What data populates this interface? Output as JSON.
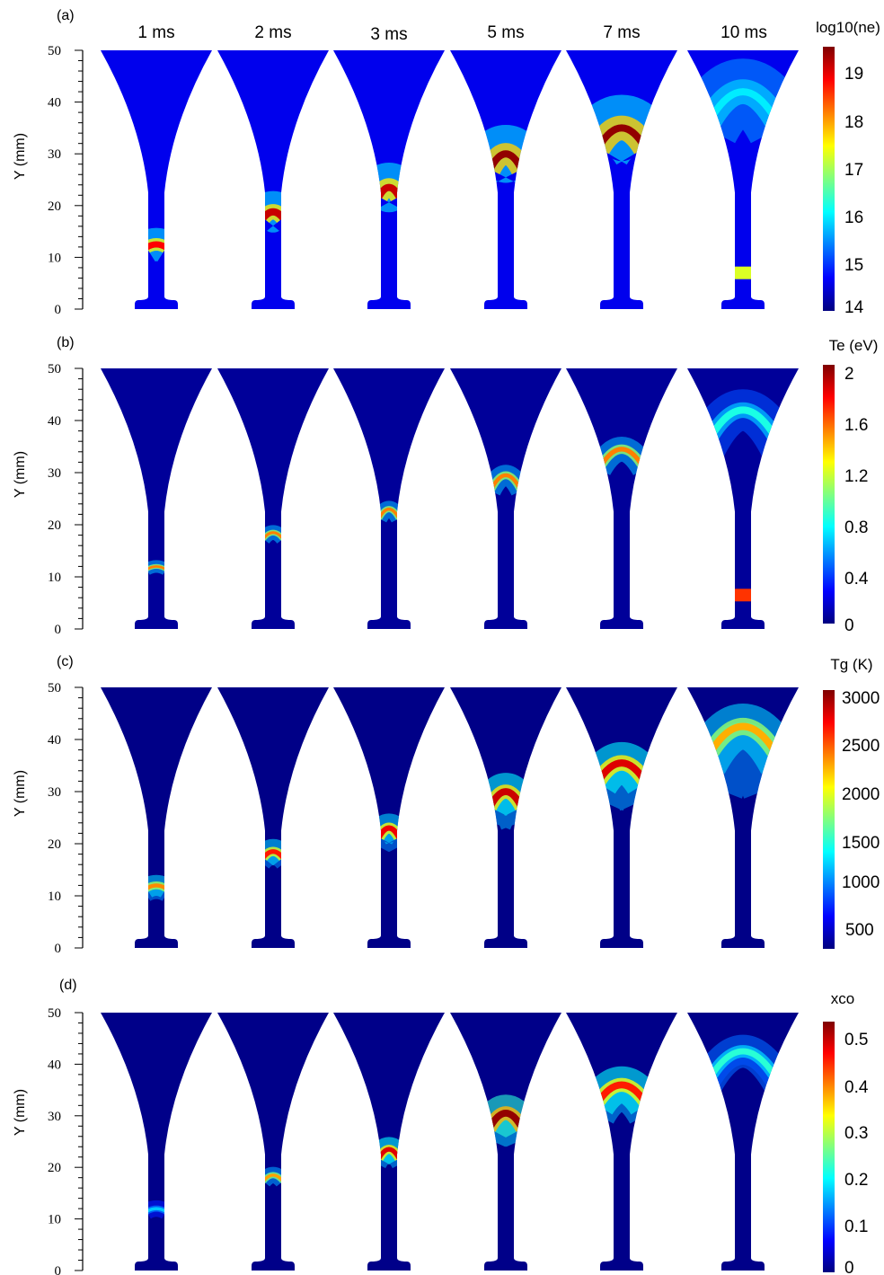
{
  "figure": {
    "time_labels": [
      "1 ms",
      "2 ms",
      "3 ms",
      "5 ms",
      "7 ms",
      "10 ms"
    ],
    "y_axis": {
      "label": "Y (mm)",
      "ticks": [
        0,
        10,
        20,
        30,
        40,
        50
      ],
      "range": [
        0,
        50
      ]
    }
  },
  "chart_data": [
    {
      "type": "heatmap",
      "panel": "(a)",
      "title": "",
      "colorbar_label": "log10(ne)",
      "colorbar_ticks": [
        "19",
        "18",
        "17",
        "16",
        "15",
        "14"
      ],
      "colorbar_range": [
        14,
        19.6
      ],
      "ylabel": "Y (mm)",
      "ylim": [
        0,
        50
      ],
      "background": 14.6,
      "snapshots": [
        {
          "time": "1 ms",
          "front_y": 12.5,
          "front_value": 18.9,
          "halo_value": 16.0,
          "halo_mm": 4,
          "arch": 0.6,
          "wake_mm": 0
        },
        {
          "time": "2 ms",
          "front_y": 18.8,
          "front_value": 19.2,
          "halo_value": 16.0,
          "halo_mm": 5,
          "arch": 1.2,
          "wake_mm": 0
        },
        {
          "time": "3 ms",
          "front_y": 23.5,
          "front_value": 19.2,
          "halo_value": 16.0,
          "halo_mm": 6,
          "arch": 1.8,
          "wake_mm": 0
        },
        {
          "time": "5 ms",
          "front_y": 30.0,
          "front_value": 19.5,
          "halo_value": 16.0,
          "halo_mm": 7,
          "arch": 3.0,
          "wake_mm": 0
        },
        {
          "time": "7 ms",
          "front_y": 35.0,
          "front_value": 19.5,
          "halo_value": 16.0,
          "halo_mm": 8,
          "arch": 3.8,
          "wake_mm": 0
        },
        {
          "time": "10 ms",
          "front_y": 42.0,
          "front_value": 16.0,
          "halo_value": 15.5,
          "halo_mm": 8,
          "arch": 7.0,
          "wake_mm": 0,
          "extra_band": {
            "y": 7.0,
            "value": 17.3
          }
        }
      ]
    },
    {
      "type": "heatmap",
      "panel": "(b)",
      "title": "",
      "colorbar_label": "Te (eV)",
      "colorbar_ticks": [
        "2",
        "1.6",
        "1.2",
        "0.8",
        "0.4",
        "0"
      ],
      "colorbar_range": [
        0,
        2
      ],
      "ylabel": "Y (mm)",
      "ylim": [
        0,
        50
      ],
      "background": 0.05,
      "snapshots": [
        {
          "time": "1 ms",
          "front_y": 12.0,
          "front_value": 1.5,
          "halo_value": 0.6,
          "halo_mm": 1.5,
          "arch": 0.6,
          "wake_mm": 0
        },
        {
          "time": "2 ms",
          "front_y": 18.5,
          "front_value": 1.5,
          "halo_value": 0.6,
          "halo_mm": 1.8,
          "arch": 1.2,
          "wake_mm": 0
        },
        {
          "time": "3 ms",
          "front_y": 23.0,
          "front_value": 1.5,
          "halo_value": 0.6,
          "halo_mm": 2.0,
          "arch": 1.8,
          "wake_mm": 0
        },
        {
          "time": "5 ms",
          "front_y": 29.5,
          "front_value": 1.5,
          "halo_value": 0.6,
          "halo_mm": 2.5,
          "arch": 3.0,
          "wake_mm": 0
        },
        {
          "time": "7 ms",
          "front_y": 34.5,
          "front_value": 1.5,
          "halo_value": 0.6,
          "halo_mm": 3.0,
          "arch": 3.8,
          "wake_mm": 0
        },
        {
          "time": "10 ms",
          "front_y": 42.0,
          "front_value": 0.8,
          "halo_value": 0.4,
          "halo_mm": 5.0,
          "arch": 7.0,
          "wake_mm": 0,
          "extra_band": {
            "y": 6.5,
            "value": 1.65
          }
        }
      ]
    },
    {
      "type": "heatmap",
      "panel": "(c)",
      "title": "",
      "colorbar_label": "Tg (K)",
      "colorbar_ticks": [
        "3000",
        "2500",
        "2000",
        "1500",
        "1000",
        "500"
      ],
      "colorbar_range": [
        300,
        3000
      ],
      "ylabel": "Y (mm)",
      "ylim": [
        0,
        50
      ],
      "background": 320,
      "snapshots": [
        {
          "time": "1 ms",
          "front_y": 12.0,
          "front_value": 2300,
          "halo_value": 1200,
          "halo_mm": 2.5,
          "arch": 0.6,
          "wake_mm": 2
        },
        {
          "time": "2 ms",
          "front_y": 18.5,
          "front_value": 2600,
          "halo_value": 1200,
          "halo_mm": 3.0,
          "arch": 1.2,
          "wake_mm": 2
        },
        {
          "time": "3 ms",
          "front_y": 23.0,
          "front_value": 2700,
          "halo_value": 1200,
          "halo_mm": 3.5,
          "arch": 1.8,
          "wake_mm": 3
        },
        {
          "time": "5 ms",
          "front_y": 30.0,
          "front_value": 2800,
          "halo_value": 1300,
          "halo_mm": 4.5,
          "arch": 3.0,
          "wake_mm": 5
        },
        {
          "time": "7 ms",
          "front_y": 35.5,
          "front_value": 2750,
          "halo_value": 1300,
          "halo_mm": 5.0,
          "arch": 3.8,
          "wake_mm": 6
        },
        {
          "time": "10 ms",
          "front_y": 42.5,
          "front_value": 2200,
          "halo_value": 1200,
          "halo_mm": 5.5,
          "arch": 7.0,
          "wake_mm": 8
        }
      ]
    },
    {
      "type": "heatmap",
      "panel": "(d)",
      "title": "",
      "colorbar_label": "xco",
      "colorbar_ticks": [
        "0.5",
        "0.4",
        "0.3",
        "0.2",
        "0.1",
        "0"
      ],
      "colorbar_range": [
        0,
        0.53
      ],
      "ylabel": "Y (mm)",
      "ylim": [
        0,
        50
      ],
      "background": 0.005,
      "snapshots": [
        {
          "time": "1 ms",
          "front_y": 12.0,
          "front_value": 0.17,
          "halo_value": 0.08,
          "halo_mm": 2.0,
          "arch": 0.6,
          "wake_mm": 0
        },
        {
          "time": "2 ms",
          "front_y": 18.5,
          "front_value": 0.38,
          "halo_value": 0.15,
          "halo_mm": 2.0,
          "arch": 1.2,
          "wake_mm": 0
        },
        {
          "time": "3 ms",
          "front_y": 23.5,
          "front_value": 0.48,
          "halo_value": 0.2,
          "halo_mm": 3.0,
          "arch": 1.8,
          "wake_mm": 2
        },
        {
          "time": "5 ms",
          "front_y": 30.5,
          "front_value": 0.52,
          "halo_value": 0.22,
          "halo_mm": 4.5,
          "arch": 3.0,
          "wake_mm": 4
        },
        {
          "time": "7 ms",
          "front_y": 36.0,
          "front_value": 0.45,
          "halo_value": 0.2,
          "halo_mm": 4.5,
          "arch": 3.8,
          "wake_mm": 4
        },
        {
          "time": "10 ms",
          "front_y": 42.5,
          "front_value": 0.22,
          "halo_value": 0.12,
          "halo_mm": 4.0,
          "arch": 7.0,
          "wake_mm": 2
        }
      ]
    }
  ]
}
